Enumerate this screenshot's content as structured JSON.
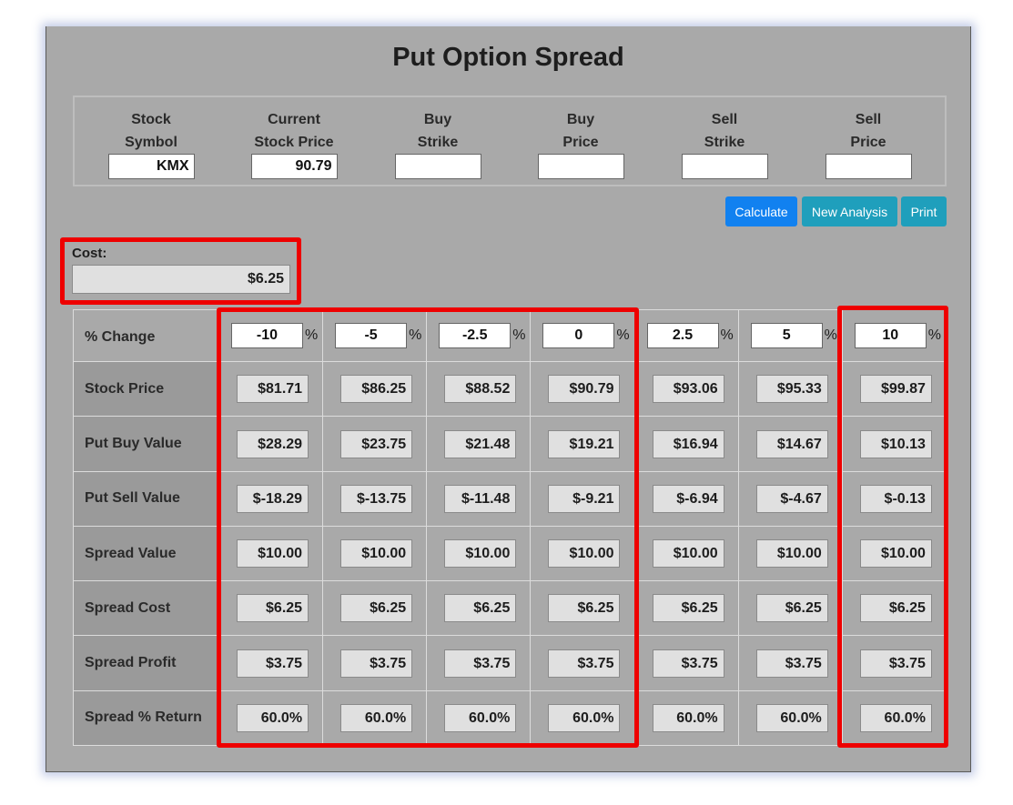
{
  "title": "Put Option Spread",
  "inputs": [
    {
      "label_1": "Stock",
      "label_2": "Symbol",
      "value": "KMX"
    },
    {
      "label_1": "Current",
      "label_2": "Stock Price",
      "value": "90.79"
    },
    {
      "label_1": "Buy",
      "label_2": "Strike",
      "value": ""
    },
    {
      "label_1": "Buy",
      "label_2": "Price",
      "value": ""
    },
    {
      "label_1": "Sell",
      "label_2": "Strike",
      "value": ""
    },
    {
      "label_1": "Sell",
      "label_2": "Price",
      "value": ""
    }
  ],
  "buttons": {
    "calculate": "Calculate",
    "new_analysis": "New Analysis",
    "print": "Print"
  },
  "cost": {
    "label": "Cost:",
    "value": "$6.25"
  },
  "table": {
    "pct_label": "% Change",
    "pct_symbol": "%",
    "pct_values": [
      "-10",
      "-5",
      "-2.5",
      "0",
      "2.5",
      "5",
      "10"
    ],
    "rows": [
      {
        "label": "Stock Price",
        "values": [
          "$81.71",
          "$86.25",
          "$88.52",
          "$90.79",
          "$93.06",
          "$95.33",
          "$99.87"
        ]
      },
      {
        "label": "Put Buy Value",
        "values": [
          "$28.29",
          "$23.75",
          "$21.48",
          "$19.21",
          "$16.94",
          "$14.67",
          "$10.13"
        ]
      },
      {
        "label": "Put Sell Value",
        "values": [
          "$-18.29",
          "$-13.75",
          "$-11.48",
          "$-9.21",
          "$-6.94",
          "$-4.67",
          "$-0.13"
        ]
      },
      {
        "label": "Spread Value",
        "values": [
          "$10.00",
          "$10.00",
          "$10.00",
          "$10.00",
          "$10.00",
          "$10.00",
          "$10.00"
        ]
      },
      {
        "label": "Spread Cost",
        "values": [
          "$6.25",
          "$6.25",
          "$6.25",
          "$6.25",
          "$6.25",
          "$6.25",
          "$6.25"
        ]
      },
      {
        "label": "Spread Profit",
        "values": [
          "$3.75",
          "$3.75",
          "$3.75",
          "$3.75",
          "$3.75",
          "$3.75",
          "$3.75"
        ]
      },
      {
        "label": "Spread % Return",
        "values": [
          "60.0%",
          "60.0%",
          "60.0%",
          "60.0%",
          "60.0%",
          "60.0%",
          "60.0%"
        ]
      }
    ]
  },
  "colors": {
    "panel": "#a9a9a9",
    "highlight": "#ee0000",
    "calculate_button": "#1181f0",
    "secondary_button": "#1f9fbc"
  }
}
